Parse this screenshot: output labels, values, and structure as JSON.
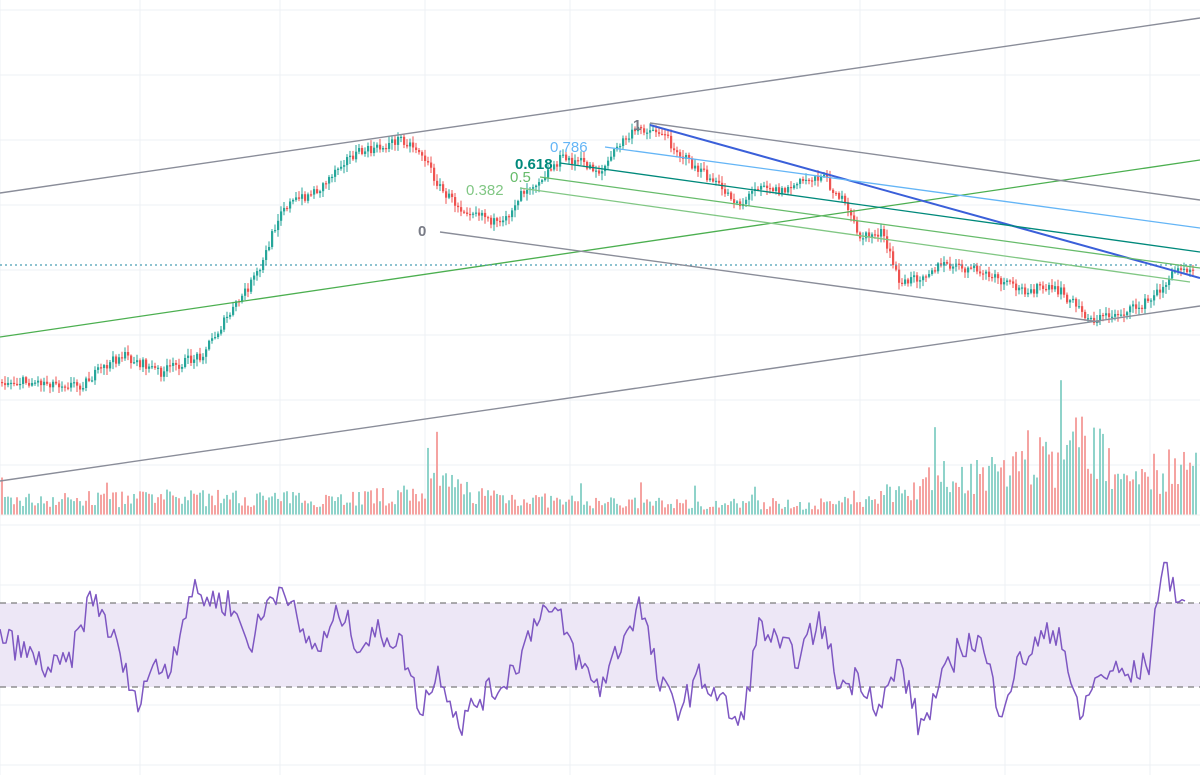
{
  "colors": {
    "background": "#ffffff",
    "grid": "#eef0f4",
    "candle_up": "#26a69a",
    "candle_down": "#ef5350",
    "volume_up": "#8fd3ca",
    "volume_down": "#f5a3a1",
    "rsi_line": "#7e57c2",
    "rsi_band": "#ede7f6",
    "channel": "#8a8d99",
    "trend_blue": "#3a5fd9",
    "trend_green": "#4caf50",
    "current_price_line": "#4a9fb5"
  },
  "annotations": {
    "fib_levels": [
      {
        "label": "0",
        "color": "#787b86"
      },
      {
        "label": "0.382",
        "color": "#81c784"
      },
      {
        "label": "0.5",
        "color": "#66bb6a"
      },
      {
        "label": "0.618",
        "color": "#00897b"
      },
      {
        "label": "0.786",
        "color": "#64b5f6"
      },
      {
        "label": "1",
        "color": "#787b86"
      }
    ]
  },
  "chart_data": {
    "type": "candlestick",
    "title": "",
    "xlabel": "",
    "ylabel": "",
    "grid": true,
    "price_series": {
      "name": "",
      "x": [
        0,
        40,
        80,
        120,
        160,
        200,
        240,
        260,
        280,
        300,
        320,
        340,
        360,
        380,
        400,
        420,
        440,
        460,
        480,
        500,
        520,
        540,
        560,
        580,
        600,
        620,
        640,
        660,
        680,
        700,
        720,
        740,
        760,
        780,
        800,
        820,
        840,
        860,
        880,
        900,
        920,
        940,
        960,
        980,
        1000,
        1020,
        1040,
        1060,
        1080,
        1090,
        1110,
        1130,
        1150,
        1165,
        1180,
        1190
      ],
      "close": [
        382,
        382,
        385,
        355,
        372,
        355,
        298,
        268,
        208,
        198,
        188,
        162,
        152,
        148,
        138,
        152,
        190,
        208,
        212,
        228,
        192,
        178,
        158,
        162,
        172,
        142,
        128,
        132,
        155,
        172,
        188,
        205,
        182,
        192,
        182,
        175,
        198,
        238,
        232,
        285,
        275,
        265,
        268,
        272,
        282,
        290,
        288,
        292,
        310,
        320,
        315,
        310,
        300,
        282,
        266,
        268
      ],
      "range": [
        0,
        775
      ]
    },
    "volume_series": {
      "name": "",
      "x": [
        0,
        100,
        200,
        300,
        400,
        440,
        480,
        560,
        680,
        800,
        860,
        880,
        940,
        1000,
        1030,
        1060,
        1086,
        1110,
        1160,
        1200
      ],
      "values": [
        20,
        22,
        24,
        22,
        26,
        44,
        28,
        18,
        16,
        14,
        18,
        28,
        50,
        60,
        72,
        70,
        118,
        56,
        60,
        64
      ]
    },
    "rsi_series": {
      "name": "",
      "x": [
        0,
        20,
        50,
        70,
        90,
        100,
        120,
        135,
        150,
        170,
        190,
        210,
        230,
        250,
        270,
        285,
        300,
        320,
        340,
        360,
        380,
        400,
        420,
        440,
        460,
        480,
        500,
        520,
        540,
        560,
        580,
        600,
        620,
        640,
        660,
        680,
        700,
        720,
        740,
        760,
        780,
        800,
        820,
        840,
        860,
        880,
        900,
        920,
        940,
        960,
        980,
        1000,
        1020,
        1040,
        1060,
        1080,
        1090,
        1110,
        1130,
        1150,
        1160,
        1170,
        1185
      ],
      "values": [
        55,
        48,
        38,
        42,
        72,
        68,
        45,
        22,
        38,
        40,
        75,
        72,
        70,
        50,
        72,
        80,
        55,
        48,
        66,
        50,
        56,
        52,
        20,
        38,
        12,
        25,
        30,
        44,
        68,
        62,
        40,
        30,
        50,
        70,
        30,
        20,
        35,
        25,
        10,
        60,
        48,
        45,
        62,
        30,
        35,
        20,
        42,
        10,
        30,
        50,
        52,
        20,
        42,
        52,
        58,
        12,
        30,
        38,
        35,
        42,
        85,
        82,
        68
      ],
      "overbought": 70,
      "oversold": 30,
      "range": [
        0,
        100
      ]
    }
  }
}
